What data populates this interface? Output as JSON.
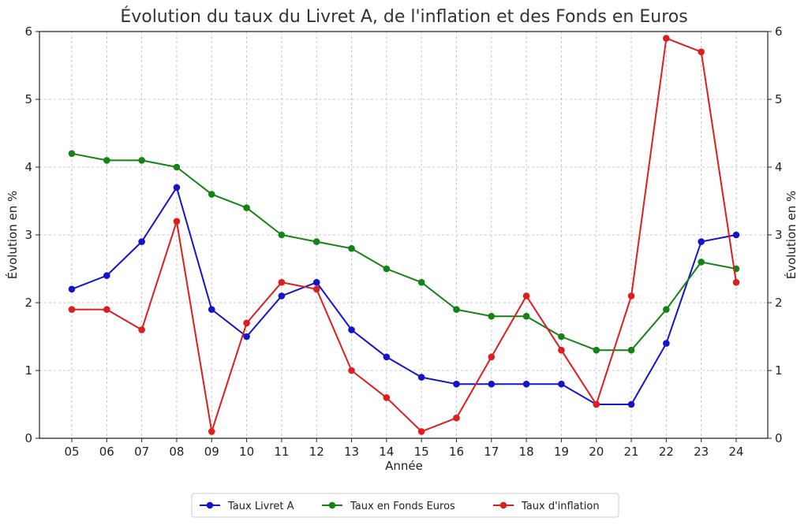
{
  "chart_data": {
    "type": "line",
    "title": "Évolution du taux du Livret A, de l'inflation et des Fonds en Euros",
    "xlabel": "Année",
    "ylabel": "Évolution en %",
    "ylabel_right": "Évolution en %",
    "categories": [
      "05",
      "06",
      "07",
      "08",
      "09",
      "10",
      "11",
      "12",
      "13",
      "14",
      "15",
      "16",
      "17",
      "18",
      "19",
      "20",
      "21",
      "22",
      "23",
      "24"
    ],
    "ylim": [
      0,
      6
    ],
    "yticks": [
      0,
      1,
      2,
      3,
      4,
      5,
      6
    ],
    "grid": true,
    "legend_position": "bottom-center",
    "series": [
      {
        "name": "Taux Livret A",
        "color": "#1414c8",
        "values": [
          2.2,
          2.4,
          2.9,
          3.7,
          1.9,
          1.5,
          2.1,
          2.3,
          1.6,
          1.2,
          0.9,
          0.8,
          0.8,
          0.8,
          0.8,
          0.5,
          0.5,
          1.4,
          2.9,
          3.0
        ]
      },
      {
        "name": "Taux en Fonds Euros",
        "color": "#148214",
        "values": [
          4.2,
          4.1,
          4.1,
          4.0,
          3.6,
          3.4,
          3.0,
          2.9,
          2.8,
          2.5,
          2.3,
          1.9,
          1.8,
          1.8,
          1.5,
          1.3,
          1.3,
          1.9,
          2.6,
          2.5
        ]
      },
      {
        "name": "Taux d'inflation",
        "color": "#dc1e1e",
        "values": [
          1.9,
          1.9,
          1.6,
          3.2,
          0.1,
          1.7,
          2.3,
          2.2,
          1.0,
          0.6,
          0.1,
          0.3,
          1.2,
          2.1,
          1.3,
          0.5,
          2.1,
          5.9,
          5.7,
          2.3
        ]
      }
    ]
  }
}
